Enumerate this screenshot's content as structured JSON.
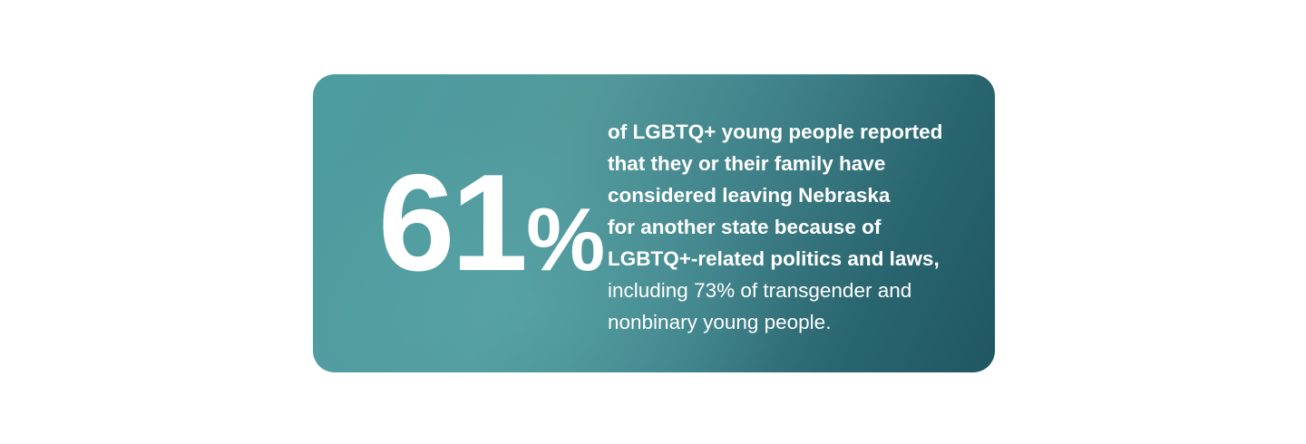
{
  "stat_card": {
    "number": "61",
    "unit": "%",
    "emphasis_lines": [
      "of LGBTQ+ young people reported",
      "that they or their family have",
      "considered leaving Nebraska",
      "for another state because of",
      "LGBTQ+-related politics and laws,"
    ],
    "detail_lines": [
      "including 73% of transgender and",
      "nonbinary young people."
    ]
  }
}
